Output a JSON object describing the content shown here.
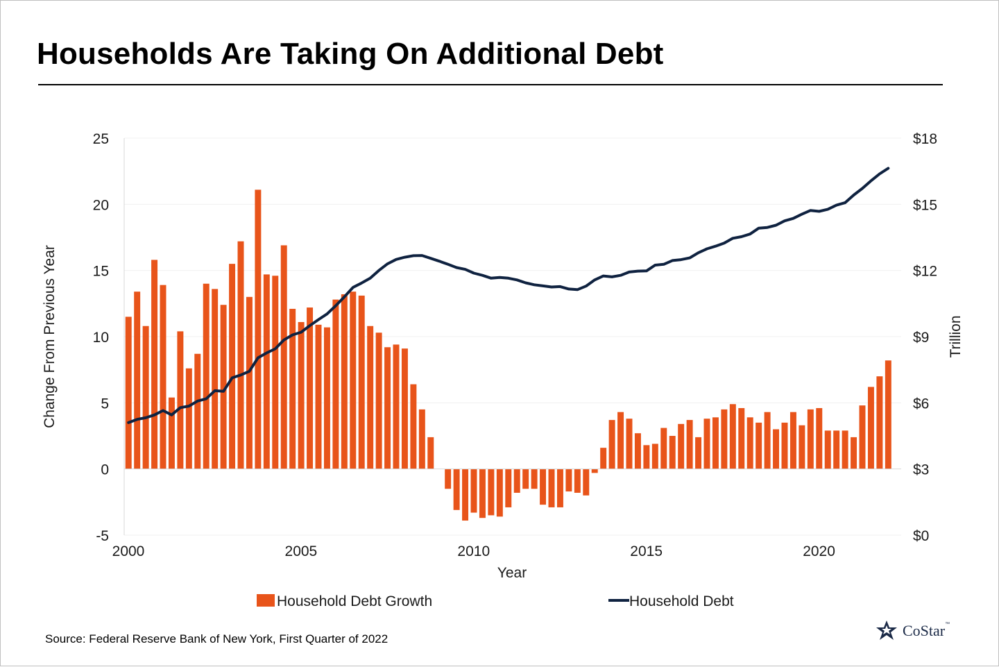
{
  "title": "Households Are Taking On Additional Debt",
  "source": "Source: Federal Reserve Bank of New York, First Quarter of 2022",
  "logo": {
    "name": "CoStar",
    "tm": "™",
    "icon": "costar-star-icon"
  },
  "colors": {
    "bar": "#e8541a",
    "line": "#0f2240",
    "grid": "#f0f0f0"
  },
  "chart_data": {
    "type": "bar+line",
    "xlabel": "Year",
    "ylabel_left": "Change From Previous Year",
    "ylabel_right": "Trillion",
    "xlim": [
      2000,
      2022.5
    ],
    "ylim_left": [
      -5,
      25
    ],
    "ylim_right": [
      0,
      18
    ],
    "xticks": [
      2000,
      2005,
      2010,
      2015,
      2020
    ],
    "yticks_left": [
      "25",
      "20",
      "15",
      "10",
      "5",
      "0",
      "-5"
    ],
    "yticks_right": [
      "$18",
      "$15",
      "$12",
      "$9",
      "$6",
      "$3",
      "$0"
    ],
    "grid": "horizontal",
    "legend_position": "bottom",
    "series": [
      {
        "name": "Household Debt Growth",
        "type": "bar",
        "axis": "left",
        "x": [
          2000.0,
          2000.25,
          2000.5,
          2000.75,
          2001.0,
          2001.25,
          2001.5,
          2001.75,
          2002.0,
          2002.25,
          2002.5,
          2002.75,
          2003.0,
          2003.25,
          2003.5,
          2003.75,
          2004.0,
          2004.25,
          2004.5,
          2004.75,
          2005.0,
          2005.25,
          2005.5,
          2005.75,
          2006.0,
          2006.25,
          2006.5,
          2006.75,
          2007.0,
          2007.25,
          2007.5,
          2007.75,
          2008.0,
          2008.25,
          2008.5,
          2008.75,
          2009.0,
          2009.25,
          2009.5,
          2009.75,
          2010.0,
          2010.25,
          2010.5,
          2010.75,
          2011.0,
          2011.25,
          2011.5,
          2011.75,
          2012.0,
          2012.25,
          2012.5,
          2012.75,
          2013.0,
          2013.25,
          2013.5,
          2013.75,
          2014.0,
          2014.25,
          2014.5,
          2014.75,
          2015.0,
          2015.25,
          2015.5,
          2015.75,
          2016.0,
          2016.25,
          2016.5,
          2016.75,
          2017.0,
          2017.25,
          2017.5,
          2017.75,
          2018.0,
          2018.25,
          2018.5,
          2018.75,
          2019.0,
          2019.25,
          2019.5,
          2019.75,
          2020.0,
          2020.25,
          2020.5,
          2020.75,
          2021.0,
          2021.25,
          2021.5,
          2021.75,
          2022.0
        ],
        "values": [
          11.5,
          13.4,
          10.8,
          15.8,
          13.9,
          5.4,
          10.4,
          7.6,
          8.7,
          14.0,
          13.6,
          12.4,
          15.5,
          17.2,
          13.0,
          21.1,
          14.7,
          14.6,
          16.9,
          12.1,
          11.1,
          12.2,
          10.9,
          10.7,
          12.8,
          13.2,
          13.4,
          13.1,
          10.8,
          10.3,
          9.2,
          9.4,
          9.1,
          6.4,
          4.5,
          2.4,
          0.0,
          -1.5,
          -3.1,
          -3.9,
          -3.3,
          -3.7,
          -3.5,
          -3.6,
          -2.9,
          -1.8,
          -1.5,
          -1.5,
          -2.7,
          -2.9,
          -2.9,
          -1.7,
          -1.8,
          -2.0,
          -0.3,
          1.6,
          3.7,
          4.3,
          3.8,
          2.7,
          1.8,
          1.9,
          3.1,
          2.5,
          3.4,
          3.7,
          2.4,
          3.8,
          3.9,
          4.5,
          4.9,
          4.6,
          3.9,
          3.5,
          4.3,
          3.0,
          3.5,
          4.3,
          3.3,
          4.5,
          4.6,
          2.9,
          2.9,
          2.9,
          2.4,
          4.8,
          6.2,
          7.0,
          8.2
        ]
      },
      {
        "name": "Household Debt",
        "type": "line",
        "axis": "right",
        "x": [
          2000.0,
          2000.25,
          2000.5,
          2000.75,
          2001.0,
          2001.25,
          2001.5,
          2001.75,
          2002.0,
          2002.25,
          2002.5,
          2002.75,
          2003.0,
          2003.25,
          2003.5,
          2003.75,
          2004.0,
          2004.25,
          2004.5,
          2004.75,
          2005.0,
          2005.25,
          2005.5,
          2005.75,
          2006.0,
          2006.25,
          2006.5,
          2006.75,
          2007.0,
          2007.25,
          2007.5,
          2007.75,
          2008.0,
          2008.25,
          2008.5,
          2008.75,
          2009.0,
          2009.25,
          2009.5,
          2009.75,
          2010.0,
          2010.25,
          2010.5,
          2010.75,
          2011.0,
          2011.25,
          2011.5,
          2011.75,
          2012.0,
          2012.25,
          2012.5,
          2012.75,
          2013.0,
          2013.25,
          2013.5,
          2013.75,
          2014.0,
          2014.25,
          2014.5,
          2014.75,
          2015.0,
          2015.25,
          2015.5,
          2015.75,
          2016.0,
          2016.25,
          2016.5,
          2016.75,
          2017.0,
          2017.25,
          2017.5,
          2017.75,
          2018.0,
          2018.25,
          2018.5,
          2018.75,
          2019.0,
          2019.25,
          2019.5,
          2019.75,
          2020.0,
          2020.25,
          2020.5,
          2020.75,
          2021.0,
          2021.25,
          2021.5,
          2021.75,
          2022.0
        ],
        "values": [
          5.1,
          5.25,
          5.32,
          5.45,
          5.65,
          5.45,
          5.78,
          5.85,
          6.08,
          6.18,
          6.55,
          6.52,
          7.13,
          7.26,
          7.43,
          8.04,
          8.26,
          8.45,
          8.85,
          9.08,
          9.2,
          9.5,
          9.77,
          10.03,
          10.4,
          10.8,
          11.23,
          11.43,
          11.65,
          12.0,
          12.3,
          12.5,
          12.6,
          12.67,
          12.68,
          12.55,
          12.42,
          12.28,
          12.13,
          12.05,
          11.88,
          11.78,
          11.65,
          11.68,
          11.65,
          11.57,
          11.44,
          11.35,
          11.3,
          11.25,
          11.27,
          11.16,
          11.13,
          11.29,
          11.57,
          11.75,
          11.71,
          11.78,
          11.93,
          11.97,
          11.98,
          12.24,
          12.28,
          12.45,
          12.49,
          12.57,
          12.8,
          12.98,
          13.1,
          13.24,
          13.46,
          13.53,
          13.65,
          13.92,
          13.95,
          14.05,
          14.25,
          14.36,
          14.55,
          14.72,
          14.68,
          14.77,
          14.96,
          15.07,
          15.42,
          15.72,
          16.06,
          16.38,
          16.63
        ]
      }
    ]
  }
}
